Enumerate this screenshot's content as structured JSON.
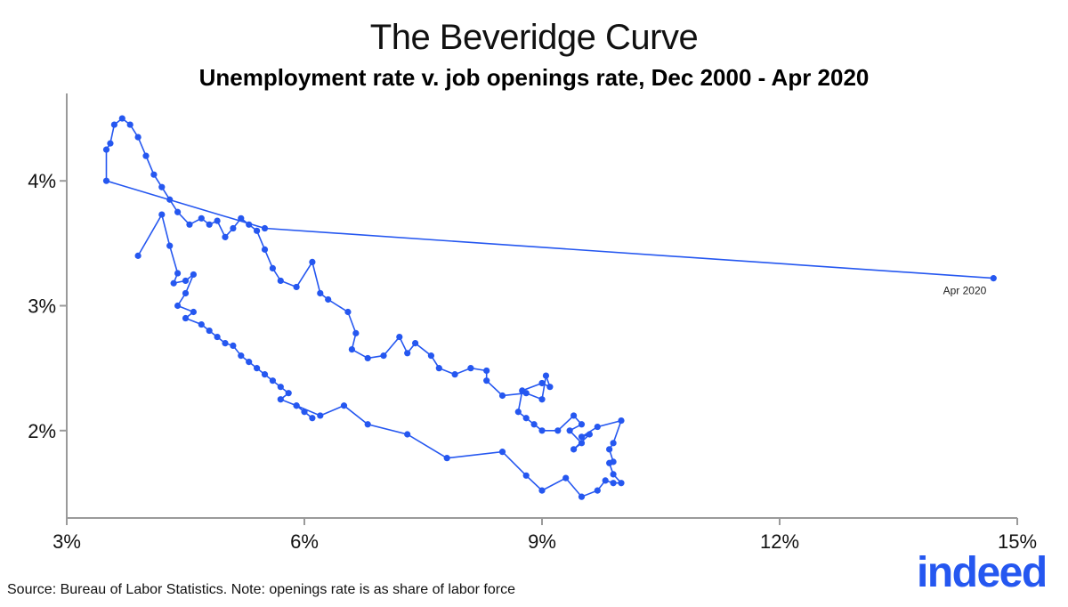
{
  "chart_data": {
    "type": "scatter",
    "title": "The Beveridge Curve",
    "subtitle": "Unemployment rate v. job openings rate, Dec 2000 - Apr 2020",
    "xlabel": "",
    "ylabel": "",
    "xlim": [
      3,
      15
    ],
    "ylim": [
      1.3,
      4.7
    ],
    "x_ticks": [
      3,
      6,
      9,
      12,
      15
    ],
    "x_tick_labels": [
      "3%",
      "6%",
      "9%",
      "12%",
      "15%"
    ],
    "y_ticks": [
      2,
      3,
      4
    ],
    "y_tick_labels": [
      "2%",
      "3%",
      "4%"
    ],
    "grid": false,
    "connected": true,
    "color": "#2557f0",
    "annotation": {
      "label": "Apr 2020",
      "x": 14.7,
      "y": 3.22
    },
    "points": [
      [
        3.9,
        3.4
      ],
      [
        4.2,
        3.73
      ],
      [
        4.3,
        3.48
      ],
      [
        4.4,
        3.26
      ],
      [
        4.35,
        3.18
      ],
      [
        4.5,
        3.2
      ],
      [
        4.6,
        3.25
      ],
      [
        4.5,
        3.1
      ],
      [
        4.4,
        3.0
      ],
      [
        4.6,
        2.95
      ],
      [
        4.5,
        2.9
      ],
      [
        4.7,
        2.85
      ],
      [
        4.8,
        2.8
      ],
      [
        4.9,
        2.75
      ],
      [
        5.0,
        2.7
      ],
      [
        5.1,
        2.68
      ],
      [
        5.2,
        2.6
      ],
      [
        5.3,
        2.55
      ],
      [
        5.4,
        2.5
      ],
      [
        5.5,
        2.45
      ],
      [
        5.6,
        2.4
      ],
      [
        5.7,
        2.35
      ],
      [
        5.8,
        2.3
      ],
      [
        5.7,
        2.25
      ],
      [
        5.9,
        2.2
      ],
      [
        6.0,
        2.15
      ],
      [
        6.1,
        2.1
      ],
      [
        5.9,
        2.2
      ],
      [
        6.2,
        2.12
      ],
      [
        6.5,
        2.2
      ],
      [
        6.8,
        2.05
      ],
      [
        7.3,
        1.97
      ],
      [
        7.8,
        1.78
      ],
      [
        8.5,
        1.83
      ],
      [
        8.8,
        1.64
      ],
      [
        9.0,
        1.52
      ],
      [
        9.3,
        1.62
      ],
      [
        9.5,
        1.47
      ],
      [
        9.7,
        1.52
      ],
      [
        9.8,
        1.6
      ],
      [
        9.9,
        1.58
      ],
      [
        10.0,
        1.58
      ],
      [
        9.9,
        1.65
      ],
      [
        9.85,
        1.74
      ],
      [
        9.9,
        1.75
      ],
      [
        9.85,
        1.85
      ],
      [
        9.9,
        1.9
      ],
      [
        10.0,
        2.08
      ],
      [
        9.7,
        2.03
      ],
      [
        9.5,
        1.95
      ],
      [
        9.6,
        1.97
      ],
      [
        9.4,
        1.85
      ],
      [
        9.5,
        1.9
      ],
      [
        9.35,
        2.0
      ],
      [
        9.5,
        2.05
      ],
      [
        9.4,
        2.12
      ],
      [
        9.2,
        2.0
      ],
      [
        9.0,
        2.0
      ],
      [
        8.9,
        2.05
      ],
      [
        8.8,
        2.1
      ],
      [
        8.7,
        2.15
      ],
      [
        8.75,
        2.32
      ],
      [
        9.0,
        2.38
      ],
      [
        9.1,
        2.35
      ],
      [
        9.05,
        2.44
      ],
      [
        9.0,
        2.25
      ],
      [
        8.8,
        2.3
      ],
      [
        8.5,
        2.28
      ],
      [
        8.3,
        2.4
      ],
      [
        8.3,
        2.48
      ],
      [
        8.1,
        2.5
      ],
      [
        7.9,
        2.45
      ],
      [
        7.7,
        2.5
      ],
      [
        7.6,
        2.6
      ],
      [
        7.4,
        2.7
      ],
      [
        7.3,
        2.62
      ],
      [
        7.2,
        2.75
      ],
      [
        7.0,
        2.6
      ],
      [
        6.8,
        2.58
      ],
      [
        6.6,
        2.65
      ],
      [
        6.65,
        2.78
      ],
      [
        6.55,
        2.95
      ],
      [
        6.3,
        3.05
      ],
      [
        6.2,
        3.1
      ],
      [
        6.1,
        3.35
      ],
      [
        5.9,
        3.15
      ],
      [
        5.7,
        3.2
      ],
      [
        5.6,
        3.3
      ],
      [
        5.5,
        3.45
      ],
      [
        5.4,
        3.6
      ],
      [
        5.3,
        3.65
      ],
      [
        5.2,
        3.7
      ],
      [
        5.1,
        3.62
      ],
      [
        5.0,
        3.55
      ],
      [
        4.9,
        3.68
      ],
      [
        4.8,
        3.65
      ],
      [
        4.7,
        3.7
      ],
      [
        4.55,
        3.65
      ],
      [
        4.4,
        3.75
      ],
      [
        4.3,
        3.85
      ],
      [
        4.2,
        3.95
      ],
      [
        4.1,
        4.05
      ],
      [
        4.0,
        4.2
      ],
      [
        3.9,
        4.35
      ],
      [
        3.8,
        4.45
      ],
      [
        3.7,
        4.5
      ],
      [
        3.6,
        4.45
      ],
      [
        3.55,
        4.3
      ],
      [
        3.5,
        4.25
      ],
      [
        3.5,
        4.0
      ],
      [
        5.5,
        3.62
      ],
      [
        14.7,
        3.22
      ]
    ]
  },
  "footer": {
    "source": "Source: Bureau of Labor Statistics. Note: openings rate is as share of labor force",
    "logo_text": "indeed"
  }
}
